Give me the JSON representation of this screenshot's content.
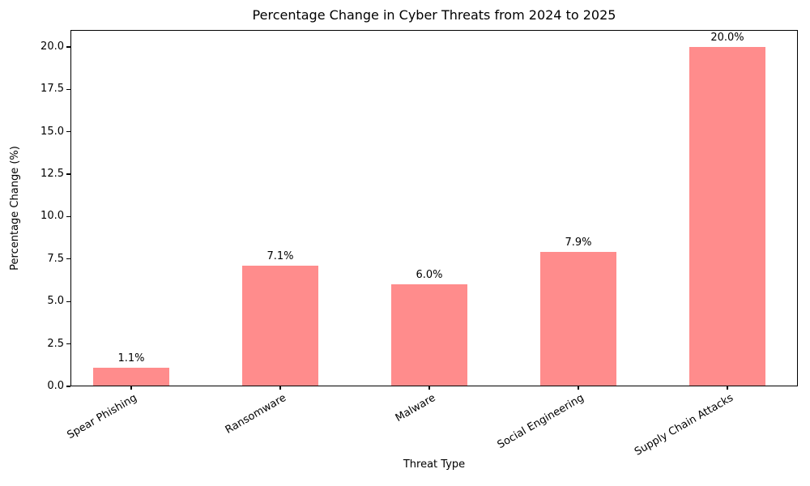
{
  "chart_data": {
    "type": "bar",
    "title": "Percentage Change in Cyber Threats from 2024 to 2025",
    "xlabel": "Threat Type",
    "ylabel": "Percentage Change (%)",
    "categories": [
      "Spear Phishing",
      "Ransomware",
      "Malware",
      "Social Engineering",
      "Supply Chain Attacks"
    ],
    "values": [
      1.1,
      7.1,
      6.0,
      7.9,
      20.0
    ],
    "bar_labels": [
      "1.1%",
      "7.1%",
      "6.0%",
      "7.9%",
      "20.0%"
    ],
    "bar_color": "#ff8c8c",
    "ylim": [
      0,
      21
    ],
    "yticks": [
      0.0,
      2.5,
      5.0,
      7.5,
      10.0,
      12.5,
      15.0,
      17.5,
      20.0
    ],
    "ytick_labels": [
      "0.0",
      "2.5",
      "5.0",
      "7.5",
      "10.0",
      "12.5",
      "15.0",
      "17.5",
      "20.0"
    ],
    "grid": false,
    "legend": "none",
    "background": "#ffffff"
  }
}
